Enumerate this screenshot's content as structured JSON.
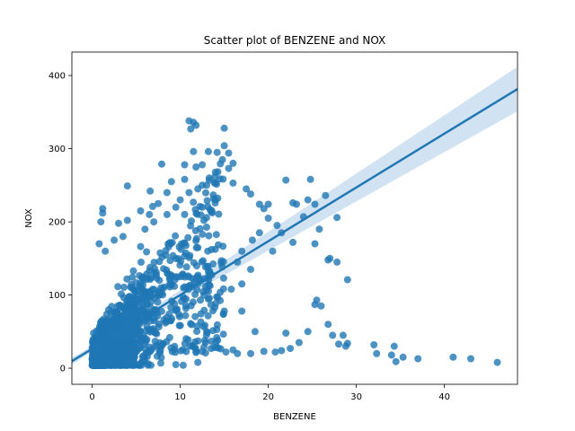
{
  "chart_data": {
    "type": "scatter",
    "title": "Scatter plot of BENZENE and NOX",
    "xlabel": "BENZENE",
    "ylabel": "NOX",
    "xlim": [
      -2.3,
      48.3
    ],
    "ylim": [
      -22,
      432
    ],
    "xticks": [
      0,
      10,
      20,
      30,
      40
    ],
    "yticks": [
      0,
      100,
      200,
      300,
      400
    ],
    "grid": false,
    "point_color": "#1f77b4",
    "regression_line": {
      "intercept": 26.5,
      "slope": 7.35,
      "color": "#1f77b4",
      "ci_color": "#c6dcef",
      "ci_halfwidth_at_mean": 2,
      "mean_x": 2.5,
      "ci_growth": 0.62
    },
    "points": [
      [
        11.0,
        338
      ],
      [
        11.5,
        336
      ],
      [
        11.2,
        327
      ],
      [
        11.8,
        332
      ],
      [
        15.0,
        328
      ],
      [
        13.2,
        296
      ],
      [
        11.5,
        296
      ],
      [
        15.0,
        304
      ],
      [
        15.5,
        294
      ],
      [
        14.2,
        295
      ],
      [
        16.0,
        280
      ],
      [
        14.8,
        285
      ],
      [
        15.5,
        273
      ],
      [
        12.5,
        278
      ],
      [
        10.5,
        278
      ],
      [
        10.5,
        258
      ],
      [
        11.8,
        275
      ],
      [
        7.9,
        279
      ],
      [
        13.3,
        260
      ],
      [
        12.5,
        250
      ],
      [
        14.0,
        253
      ],
      [
        16.0,
        253
      ],
      [
        17.5,
        245
      ],
      [
        18.0,
        238
      ],
      [
        19.0,
        224
      ],
      [
        20.0,
        224
      ],
      [
        19.5,
        218
      ],
      [
        22.0,
        257
      ],
      [
        24.8,
        258
      ],
      [
        22.8,
        226
      ],
      [
        23.2,
        224
      ],
      [
        24.5,
        230
      ],
      [
        25.3,
        224
      ],
      [
        26.5,
        236
      ],
      [
        24.0,
        207
      ],
      [
        27.8,
        206
      ],
      [
        20.0,
        205
      ],
      [
        21.0,
        195
      ],
      [
        21.5,
        185
      ],
      [
        25.8,
        190
      ],
      [
        22.8,
        172
      ],
      [
        25.3,
        170
      ],
      [
        26.8,
        148
      ],
      [
        27.0,
        150
      ],
      [
        27.8,
        145
      ],
      [
        19.0,
        185
      ],
      [
        18.2,
        175
      ],
      [
        20.5,
        160
      ],
      [
        17.0,
        160
      ],
      [
        16.5,
        145
      ],
      [
        18.0,
        135
      ],
      [
        17.0,
        115
      ],
      [
        15.8,
        108
      ],
      [
        29.0,
        121
      ],
      [
        25.5,
        93
      ],
      [
        26.0,
        85
      ],
      [
        25.3,
        87
      ],
      [
        26.8,
        60
      ],
      [
        27.3,
        45
      ],
      [
        28.5,
        45
      ],
      [
        29.0,
        34
      ],
      [
        28.8,
        30
      ],
      [
        28.0,
        33
      ],
      [
        32.0,
        32
      ],
      [
        32.3,
        20
      ],
      [
        34.3,
        30
      ],
      [
        34.0,
        18
      ],
      [
        34.5,
        9
      ],
      [
        35.3,
        15
      ],
      [
        37.0,
        13
      ],
      [
        41.0,
        15
      ],
      [
        43.0,
        13
      ],
      [
        46.0,
        8
      ],
      [
        18.0,
        20
      ],
      [
        16.0,
        25
      ],
      [
        15.2,
        22
      ],
      [
        16.5,
        20
      ],
      [
        19.5,
        23
      ],
      [
        20.8,
        22
      ],
      [
        21.5,
        24
      ],
      [
        22.5,
        27
      ],
      [
        23.5,
        35
      ],
      [
        24.5,
        50
      ],
      [
        22.0,
        48
      ],
      [
        18.5,
        50
      ],
      [
        17.0,
        78
      ],
      [
        15.0,
        78
      ],
      [
        13.0,
        50
      ],
      [
        9.5,
        5
      ],
      [
        7.8,
        7
      ],
      [
        12.0,
        8
      ],
      [
        4.0,
        249
      ],
      [
        6.6,
        242
      ],
      [
        5.5,
        215
      ],
      [
        4.0,
        202
      ],
      [
        3.0,
        198
      ],
      [
        1.2,
        218
      ],
      [
        1.2,
        212
      ],
      [
        1.0,
        200
      ],
      [
        0.8,
        170
      ],
      [
        1.5,
        160
      ],
      [
        2.5,
        175
      ],
      [
        3.5,
        180
      ],
      [
        6.0,
        190
      ],
      [
        7.0,
        200
      ],
      [
        8.5,
        210
      ],
      [
        9.5,
        220
      ],
      [
        10.0,
        230
      ],
      [
        11.0,
        240
      ],
      [
        12.0,
        245
      ],
      [
        13.0,
        250
      ],
      [
        9.0,
        255
      ],
      [
        8.5,
        240
      ],
      [
        7.5,
        225
      ],
      [
        6.5,
        210
      ],
      [
        10.5,
        210
      ],
      [
        12.5,
        220
      ],
      [
        14.0,
        230
      ]
    ]
  }
}
